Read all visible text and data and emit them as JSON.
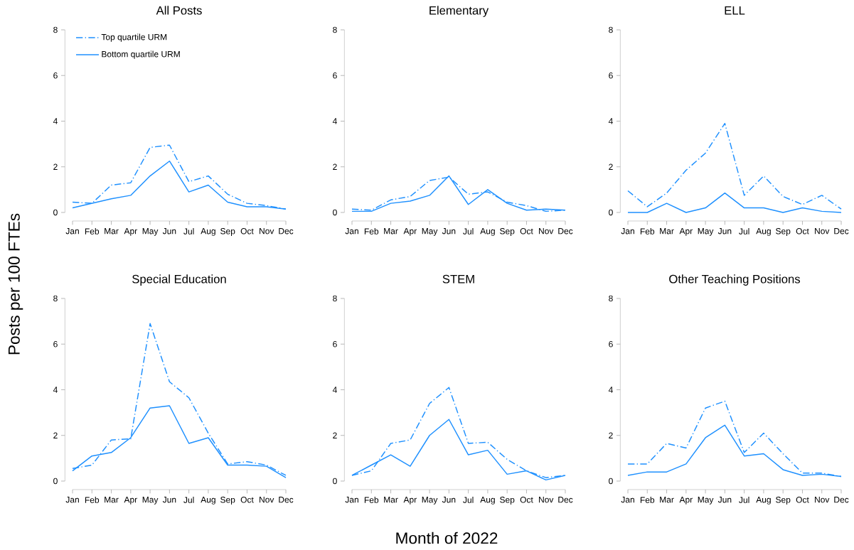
{
  "chart_data": [
    {
      "type": "line",
      "title": "All Posts",
      "ylabel": "Posts per 100 FTEs",
      "legend": "top left",
      "ylim": [
        0,
        8
      ],
      "yticks": [
        0,
        2,
        4,
        6,
        8
      ],
      "categories": [
        "Jan",
        "Feb",
        "Mar",
        "Apr",
        "May",
        "Jun",
        "Jul",
        "Aug",
        "Sep",
        "Oct",
        "Nov",
        "Dec"
      ],
      "series": [
        {
          "name": "Top quartile URM",
          "color": "#1e90ff",
          "line_style": "dashdot",
          "values": [
            0.45,
            0.4,
            1.2,
            1.3,
            2.85,
            2.95,
            1.35,
            1.6,
            0.8,
            0.4,
            0.3,
            0.15
          ]
        },
        {
          "name": "Bottom quartile URM",
          "color": "#1e90ff",
          "line_style": "solid",
          "values": [
            0.2,
            0.4,
            0.6,
            0.75,
            1.6,
            2.25,
            0.9,
            1.2,
            0.45,
            0.25,
            0.25,
            0.15
          ]
        }
      ]
    },
    {
      "type": "line",
      "title": "Elementary",
      "ylim": [
        0,
        8
      ],
      "yticks": [
        0,
        2,
        4,
        6,
        8
      ],
      "categories": [
        "Jan",
        "Feb",
        "Mar",
        "Apr",
        "May",
        "Jun",
        "Jul",
        "Aug",
        "Sep",
        "Oct",
        "Nov",
        "Dec"
      ],
      "series": [
        {
          "color": "#1e90ff",
          "line_style": "dashdot",
          "values": [
            0.15,
            0.1,
            0.55,
            0.7,
            1.4,
            1.55,
            0.8,
            0.9,
            0.45,
            0.3,
            0.05,
            0.1
          ]
        },
        {
          "color": "#1e90ff",
          "line_style": "solid",
          "values": [
            0.05,
            0.05,
            0.4,
            0.5,
            0.75,
            1.6,
            0.35,
            1.0,
            0.4,
            0.1,
            0.15,
            0.1
          ]
        }
      ]
    },
    {
      "type": "line",
      "title": "ELL",
      "ylim": [
        0,
        8
      ],
      "yticks": [
        0,
        2,
        4,
        6,
        8
      ],
      "categories": [
        "Jan",
        "Feb",
        "Mar",
        "Apr",
        "May",
        "Jun",
        "Jul",
        "Aug",
        "Sep",
        "Oct",
        "Nov",
        "Dec"
      ],
      "series": [
        {
          "color": "#1e90ff",
          "line_style": "dashdot",
          "values": [
            0.95,
            0.25,
            0.85,
            1.85,
            2.6,
            3.9,
            0.75,
            1.6,
            0.7,
            0.35,
            0.75,
            0.15
          ]
        },
        {
          "color": "#1e90ff",
          "line_style": "solid",
          "values": [
            0,
            0,
            0.4,
            0,
            0.2,
            0.85,
            0.2,
            0.2,
            0,
            0.2,
            0.05,
            0
          ]
        }
      ]
    },
    {
      "type": "line",
      "title": "Special Education",
      "ylim": [
        0,
        8
      ],
      "yticks": [
        0,
        2,
        4,
        6,
        8
      ],
      "categories": [
        "Jan",
        "Feb",
        "Mar",
        "Apr",
        "May",
        "Jun",
        "Jul",
        "Aug",
        "Sep",
        "Oct",
        "Nov",
        "Dec"
      ],
      "series": [
        {
          "color": "#1e90ff",
          "line_style": "dashdot",
          "values": [
            0.55,
            0.7,
            1.8,
            1.85,
            6.9,
            4.35,
            3.65,
            2.1,
            0.75,
            0.85,
            0.7,
            0.25
          ]
        },
        {
          "color": "#1e90ff",
          "line_style": "solid",
          "values": [
            0.45,
            1.1,
            1.25,
            1.9,
            3.2,
            3.3,
            1.65,
            1.9,
            0.7,
            0.7,
            0.65,
            0.15
          ]
        }
      ]
    },
    {
      "type": "line",
      "title": "STEM",
      "xlabel": "Month of 2022",
      "ylim": [
        0,
        8
      ],
      "yticks": [
        0,
        2,
        4,
        6,
        8
      ],
      "categories": [
        "Jan",
        "Feb",
        "Mar",
        "Apr",
        "May",
        "Jun",
        "Jul",
        "Aug",
        "Sep",
        "Oct",
        "Nov",
        "Dec"
      ],
      "series": [
        {
          "color": "#1e90ff",
          "line_style": "dashdot",
          "values": [
            0.25,
            0.45,
            1.65,
            1.8,
            3.4,
            4.1,
            1.65,
            1.7,
            0.95,
            0.45,
            0.15,
            0.25
          ]
        },
        {
          "color": "#1e90ff",
          "line_style": "solid",
          "values": [
            0.25,
            0.7,
            1.15,
            0.65,
            2.0,
            2.7,
            1.15,
            1.35,
            0.3,
            0.45,
            0.05,
            0.25
          ]
        }
      ]
    },
    {
      "type": "line",
      "title": "Other Teaching Positions",
      "ylim": [
        0,
        8
      ],
      "yticks": [
        0,
        2,
        4,
        6,
        8
      ],
      "categories": [
        "Jan",
        "Feb",
        "Mar",
        "Apr",
        "May",
        "Jun",
        "Jul",
        "Aug",
        "Sep",
        "Oct",
        "Nov",
        "Dec"
      ],
      "series": [
        {
          "color": "#1e90ff",
          "line_style": "dashdot",
          "values": [
            0.75,
            0.75,
            1.65,
            1.45,
            3.2,
            3.5,
            1.25,
            2.1,
            1.2,
            0.35,
            0.35,
            0.2
          ]
        },
        {
          "color": "#1e90ff",
          "line_style": "solid",
          "values": [
            0.25,
            0.4,
            0.4,
            0.75,
            1.9,
            2.45,
            1.1,
            1.2,
            0.5,
            0.25,
            0.3,
            0.2
          ]
        }
      ]
    }
  ]
}
